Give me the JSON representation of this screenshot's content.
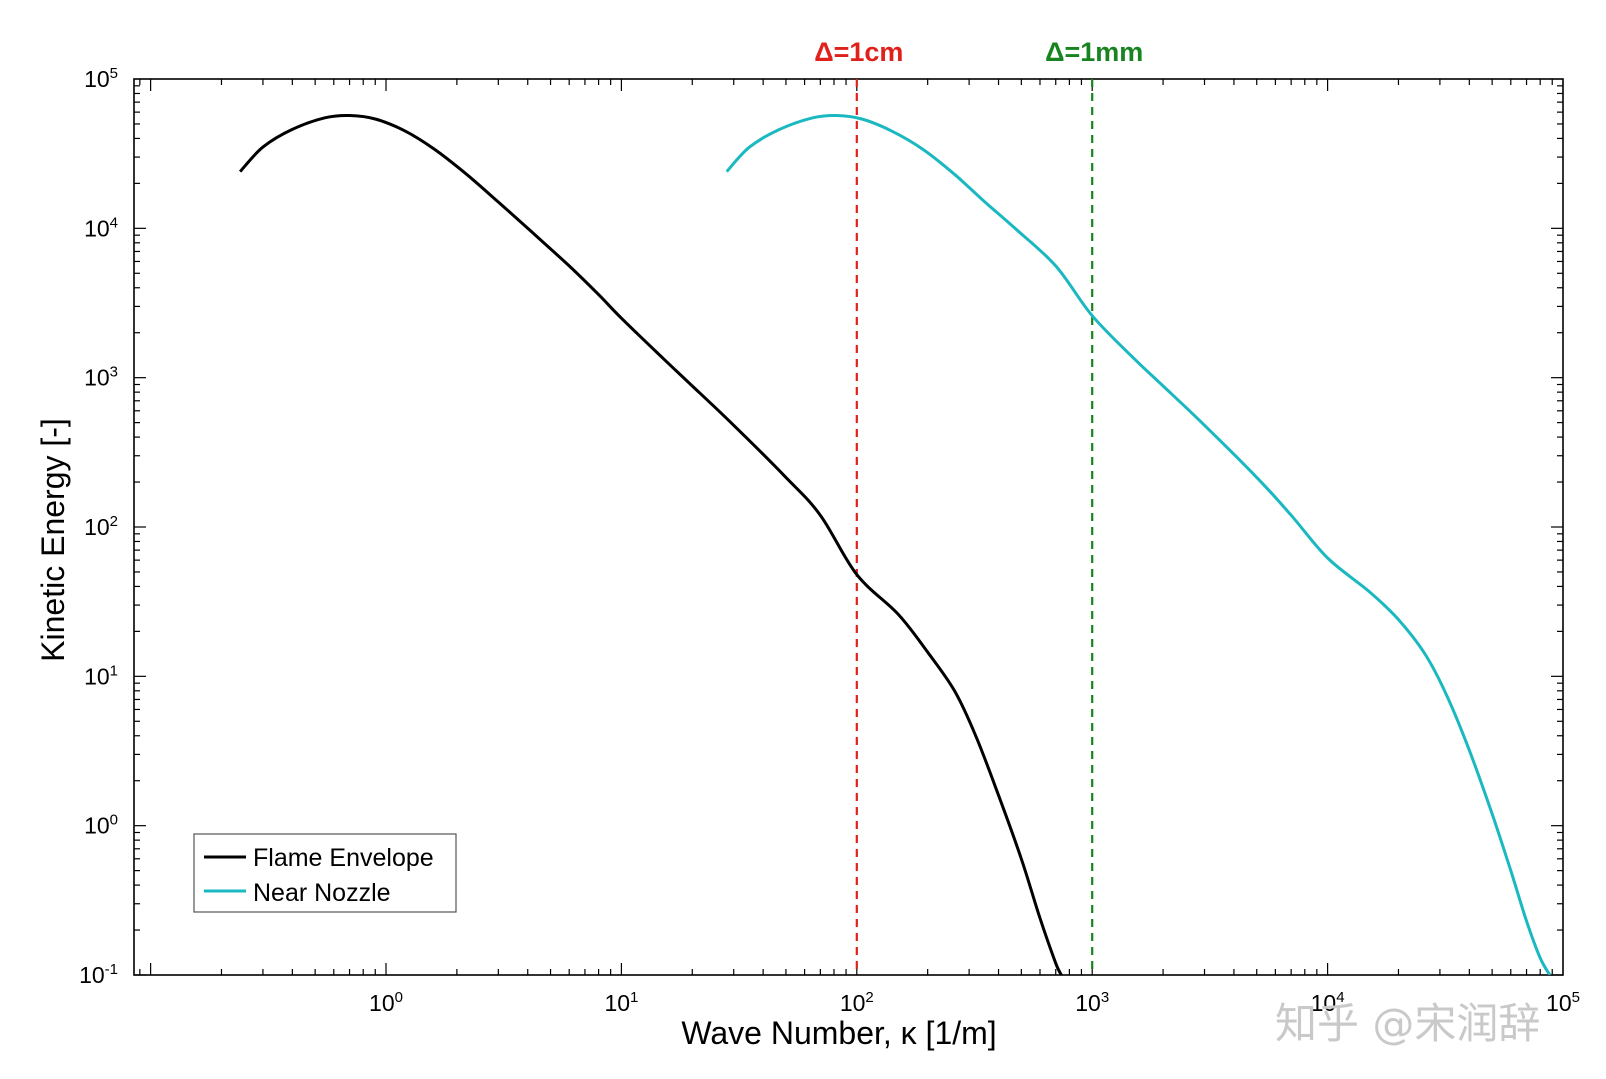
{
  "chart_data": {
    "type": "line",
    "title": "",
    "xlabel": "Wave Number, κ [1/m]",
    "ylabel": "Kinetic Energy [-]",
    "xscale": "log",
    "yscale": "log",
    "xlim": [
      0.085,
      100000
    ],
    "ylim": [
      0.1,
      100000
    ],
    "x_ticks": [
      1,
      10,
      100,
      1000,
      10000,
      100000
    ],
    "x_tick_labels": [
      {
        "base": "10",
        "exp": "0"
      },
      {
        "base": "10",
        "exp": "1"
      },
      {
        "base": "10",
        "exp": "2"
      },
      {
        "base": "10",
        "exp": "3"
      },
      {
        "base": "10",
        "exp": "4"
      },
      {
        "base": "10",
        "exp": "5"
      }
    ],
    "y_ticks": [
      0.1,
      1,
      10,
      100,
      1000,
      10000,
      100000
    ],
    "y_tick_labels": [
      {
        "base": "10",
        "exp": "-1"
      },
      {
        "base": "10",
        "exp": "0"
      },
      {
        "base": "10",
        "exp": "1"
      },
      {
        "base": "10",
        "exp": "2"
      },
      {
        "base": "10",
        "exp": "3"
      },
      {
        "base": "10",
        "exp": "4"
      },
      {
        "base": "10",
        "exp": "5"
      }
    ],
    "grid": false,
    "legend_position": "bottom-left",
    "series": [
      {
        "name": "Flame Envelope",
        "color": "#000000",
        "points": [
          [
            0.24,
            24000
          ],
          [
            0.3,
            35000
          ],
          [
            0.4,
            46000
          ],
          [
            0.55,
            55000
          ],
          [
            0.7,
            57000
          ],
          [
            0.9,
            54000
          ],
          [
            1.2,
            45000
          ],
          [
            1.6,
            34000
          ],
          [
            2.2,
            23000
          ],
          [
            3,
            15000
          ],
          [
            4,
            10000
          ],
          [
            6,
            5600
          ],
          [
            8,
            3600
          ],
          [
            10,
            2500
          ],
          [
            15,
            1350
          ],
          [
            20,
            880
          ],
          [
            30,
            480
          ],
          [
            50,
            215
          ],
          [
            70,
            120
          ],
          [
            100,
            48
          ],
          [
            150,
            26
          ],
          [
            200,
            14.5
          ],
          [
            260,
            8
          ],
          [
            320,
            4
          ],
          [
            400,
            1.6
          ],
          [
            500,
            0.6
          ],
          [
            600,
            0.24
          ],
          [
            700,
            0.12
          ],
          [
            740,
            0.1
          ]
        ]
      },
      {
        "name": "Near Nozzle",
        "color": "#1ab8c0",
        "points": [
          [
            28,
            24000
          ],
          [
            35,
            35000
          ],
          [
            47,
            46000
          ],
          [
            65,
            55000
          ],
          [
            82,
            57000
          ],
          [
            105,
            54000
          ],
          [
            140,
            45000
          ],
          [
            190,
            34000
          ],
          [
            260,
            23000
          ],
          [
            350,
            15000
          ],
          [
            470,
            10000
          ],
          [
            700,
            5600
          ],
          [
            1000,
            2600
          ],
          [
            1500,
            1350
          ],
          [
            2000,
            880
          ],
          [
            3000,
            480
          ],
          [
            5000,
            215
          ],
          [
            7000,
            120
          ],
          [
            10000,
            62
          ],
          [
            15000,
            37
          ],
          [
            20000,
            24
          ],
          [
            26000,
            14
          ],
          [
            32000,
            7.5
          ],
          [
            40000,
            3.2
          ],
          [
            50000,
            1.2
          ],
          [
            60000,
            0.5
          ],
          [
            70000,
            0.23
          ],
          [
            80000,
            0.13
          ],
          [
            88000,
            0.1
          ]
        ]
      }
    ],
    "annotations": [
      {
        "label": "Δ=1cm",
        "x": 100,
        "color": "#e0201b"
      },
      {
        "label": "Δ=1mm",
        "x": 1000,
        "color": "#17841f"
      }
    ]
  },
  "watermark": "知乎 @宋润辞"
}
